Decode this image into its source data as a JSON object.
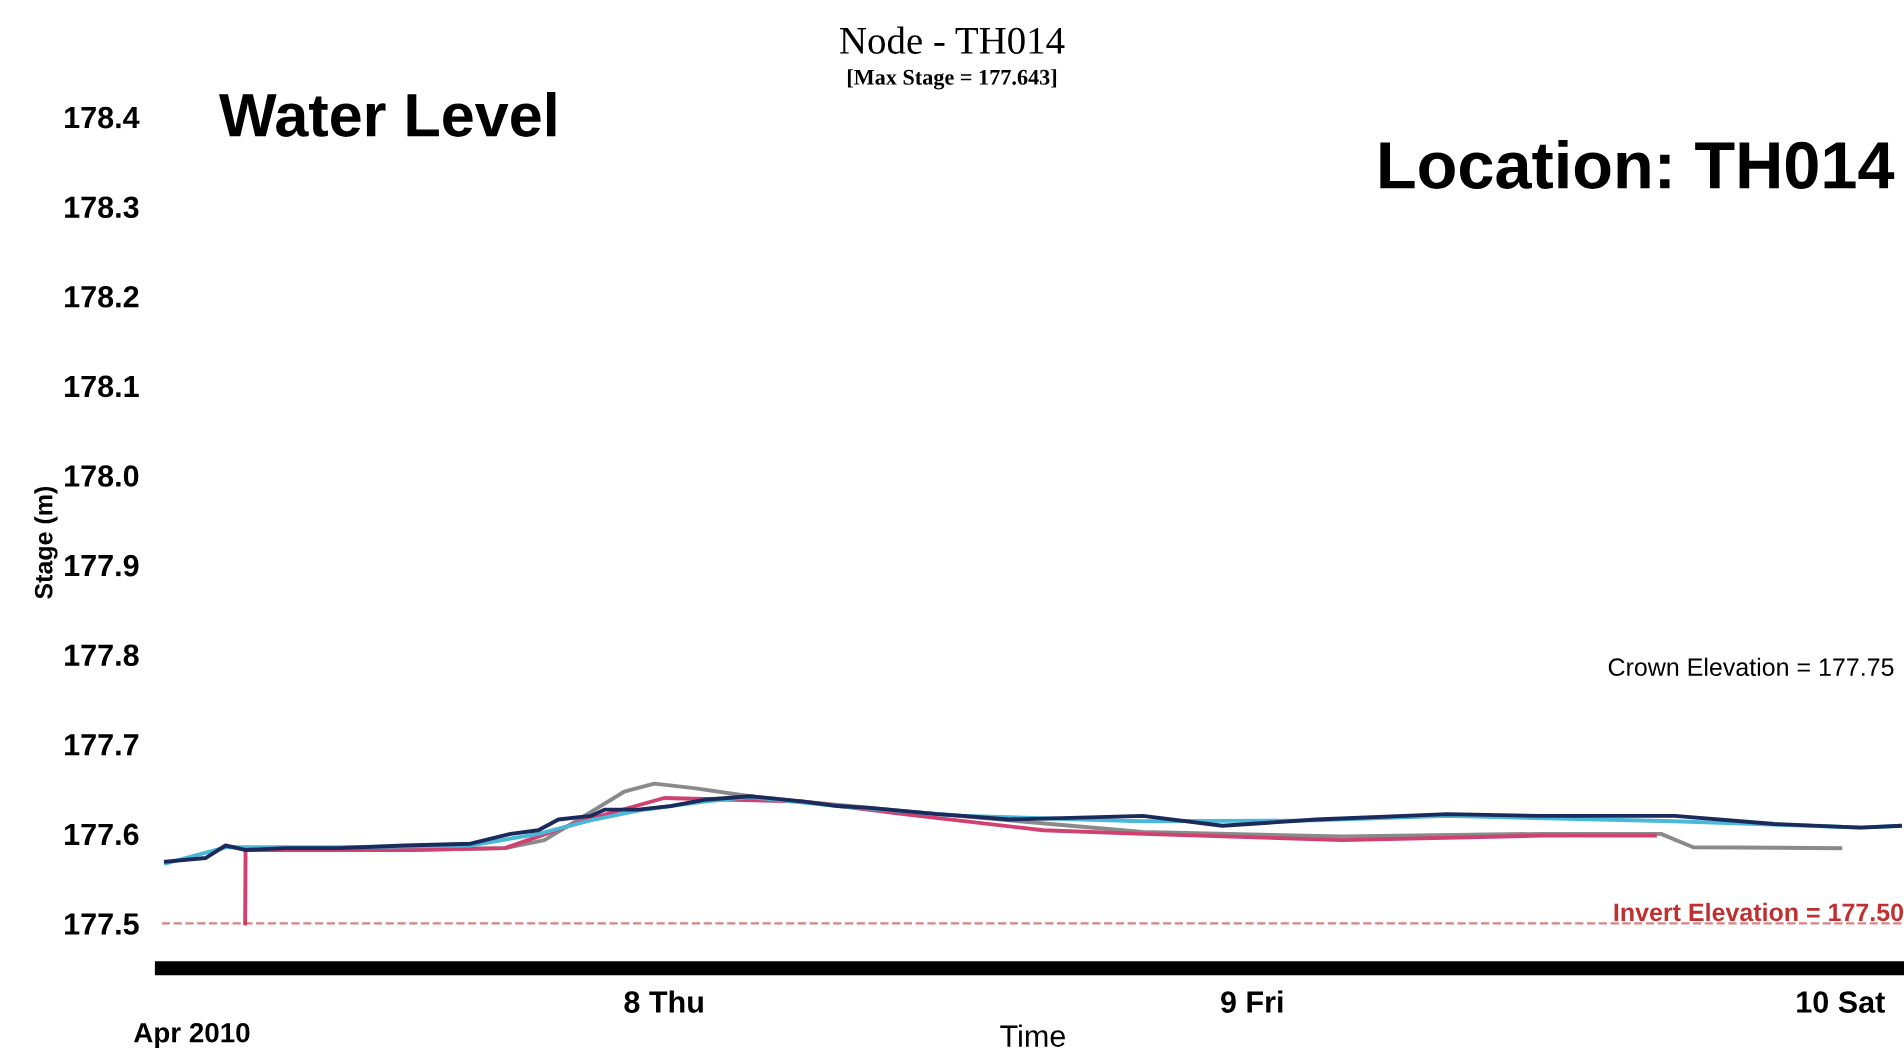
{
  "chart_data": {
    "type": "line",
    "title": "Node - TH014",
    "subtitle": "[Max Stage = 177.643]",
    "xlabel": "Time",
    "ylabel": "Stage (m)",
    "annotations": [
      "Water Level",
      "Location: TH014",
      "Apr 2010",
      "Crown Elevation = 177.75"
    ],
    "xlim": [
      "2010-04-07T03:30",
      "2010-04-10T02:36"
    ],
    "xticks": [
      {
        "value": "2010-04-08",
        "label": "8 Thu"
      },
      {
        "value": "2010-04-09",
        "label": "9 Fri"
      },
      {
        "value": "2010-04-10",
        "label": "10 Sat"
      }
    ],
    "ylim": [
      177.45,
      178.4
    ],
    "yticks": [
      177.5,
      177.6,
      177.7,
      177.8,
      177.9,
      {
        "value": 178.0,
        "label": "178.0"
      },
      178.1,
      178.2,
      178.3,
      178.4
    ],
    "grid": false,
    "legend": false,
    "marker": "none",
    "line_style": "solid",
    "ref_lines": [
      {
        "axis": "y",
        "value": 177.5,
        "label": "Invert Elevation = 177.50",
        "color": "#c03030",
        "line_style": "dashed"
      }
    ],
    "series": [
      {
        "color": "#8a8a8a",
        "x": [
          "2010-04-07T06:54",
          "2010-04-07T13:25",
          "2010-04-07T17:30",
          "2010-04-07T19:07",
          "2010-04-07T20:45",
          "2010-04-07T22:22",
          "2010-04-07T23:36",
          "2010-04-08T01:13",
          "2010-04-08T03:30",
          "2010-04-08T05:42",
          "2010-04-08T11:09",
          "2010-04-08T19:32",
          "2010-04-09T03:40",
          "2010-04-09T11:48",
          "2010-04-09T16:41",
          "2010-04-09T18:00",
          "2010-04-10T00:00"
        ],
        "values": [
          177.582,
          177.582,
          177.584,
          177.593,
          177.62,
          177.647,
          177.656,
          177.651,
          177.642,
          177.636,
          177.622,
          177.602,
          177.597,
          177.6,
          177.6,
          177.585,
          177.584
        ]
      },
      {
        "color": "#d04070",
        "x": [
          "2010-04-07T06:54",
          "2010-04-07T06:55",
          "2010-04-07T13:25",
          "2010-04-07T17:30",
          "2010-04-07T20:45",
          "2010-04-08T00:00",
          "2010-04-08T05:42",
          "2010-04-08T09:46",
          "2010-04-08T15:28",
          "2010-04-08T19:32",
          "2010-04-09T03:40",
          "2010-04-09T11:48",
          "2010-04-09T16:26"
        ],
        "values": [
          177.5,
          177.582,
          177.582,
          177.584,
          177.615,
          177.64,
          177.636,
          177.622,
          177.604,
          177.6,
          177.593,
          177.598,
          177.598
        ]
      },
      {
        "color": "#4ab8d8",
        "x": [
          "2010-04-07T03:40",
          "2010-04-07T06:06",
          "2010-04-07T10:44",
          "2010-04-07T16:06",
          "2010-04-07T18:52",
          "2010-04-07T21:00",
          "2010-04-07T22:56",
          "2010-04-08T01:38",
          "2010-04-08T03:30",
          "2010-04-08T07:05",
          "2010-04-08T12:12",
          "2010-04-08T19:32",
          "2010-04-09T02:36",
          "2010-04-09T07:58",
          "2010-04-09T17:15",
          "2010-04-10T00:49",
          "2010-04-10T02:26"
        ],
        "values": [
          177.567,
          177.585,
          177.585,
          177.587,
          177.6,
          177.615,
          177.626,
          177.636,
          177.641,
          177.631,
          177.62,
          177.614,
          177.615,
          177.62,
          177.614,
          177.607,
          177.609
        ]
      },
      {
        "color": "#1a2a5a",
        "x": [
          "2010-04-07T03:40",
          "2010-04-07T05:17",
          "2010-04-07T06:06",
          "2010-04-07T06:54",
          "2010-04-07T08:32",
          "2010-04-07T10:44",
          "2010-04-07T13:25",
          "2010-04-07T16:06",
          "2010-04-07T17:44",
          "2010-04-07T18:52",
          "2010-04-07T19:41",
          "2010-04-07T21:00",
          "2010-04-07T21:34",
          "2010-04-07T22:56",
          "2010-04-08T00:15",
          "2010-04-08T01:38",
          "2010-04-08T03:30",
          "2010-04-08T05:42",
          "2010-04-08T07:05",
          "2010-04-08T08:23",
          "2010-04-08T11:09",
          "2010-04-08T12:12",
          "2010-04-08T14:05",
          "2010-04-08T19:32",
          "2010-04-08T22:47",
          "2010-04-09T02:36",
          "2010-04-09T07:58",
          "2010-04-09T11:48",
          "2010-04-09T17:15",
          "2010-04-09T21:19",
          "2010-04-10T00:49",
          "2010-04-10T02:26"
        ],
        "values": [
          177.569,
          177.573,
          177.587,
          177.582,
          177.584,
          177.584,
          177.587,
          177.589,
          177.6,
          177.604,
          177.616,
          177.62,
          177.627,
          177.627,
          177.631,
          177.638,
          177.642,
          177.636,
          177.631,
          177.629,
          177.622,
          177.62,
          177.616,
          177.62,
          177.609,
          177.616,
          177.622,
          177.62,
          177.62,
          177.611,
          177.607,
          177.609
        ]
      }
    ]
  }
}
